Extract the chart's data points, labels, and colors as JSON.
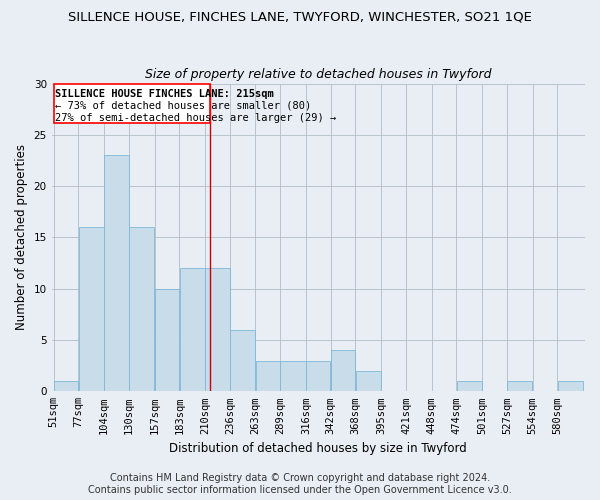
{
  "title": "SILLENCE HOUSE, FINCHES LANE, TWYFORD, WINCHESTER, SO21 1QE",
  "subtitle": "Size of property relative to detached houses in Twyford",
  "xlabel": "Distribution of detached houses by size in Twyford",
  "ylabel": "Number of detached properties",
  "categories": [
    "51sqm",
    "77sqm",
    "104sqm",
    "130sqm",
    "157sqm",
    "183sqm",
    "210sqm",
    "236sqm",
    "263sqm",
    "289sqm",
    "316sqm",
    "342sqm",
    "368sqm",
    "395sqm",
    "421sqm",
    "448sqm",
    "474sqm",
    "501sqm",
    "527sqm",
    "554sqm",
    "580sqm"
  ],
  "values": [
    1,
    16,
    23,
    16,
    10,
    12,
    12,
    6,
    3,
    3,
    3,
    4,
    2,
    0,
    0,
    0,
    1,
    0,
    1,
    0,
    1
  ],
  "bar_color": "#c9dcea",
  "bar_edge_color": "#7db8d8",
  "bin_edges": [
    51,
    77,
    104,
    130,
    157,
    183,
    210,
    236,
    263,
    289,
    316,
    342,
    368,
    395,
    421,
    448,
    474,
    501,
    527,
    554,
    580,
    607
  ],
  "annotation_text_line1": "SILLENCE HOUSE FINCHES LANE: 215sqm",
  "annotation_text_line2": "← 73% of detached houses are smaller (80)",
  "annotation_text_line3": "27% of semi-detached houses are larger (29) →",
  "red_line_color": "#cc0000",
  "footer_line1": "Contains HM Land Registry data © Crown copyright and database right 2024.",
  "footer_line2": "Contains public sector information licensed under the Open Government Licence v3.0.",
  "bg_color": "#e8eef4",
  "ylim": [
    0,
    30
  ],
  "yticks": [
    0,
    5,
    10,
    15,
    20,
    25,
    30
  ],
  "title_fontsize": 9.5,
  "subtitle_fontsize": 9,
  "axis_label_fontsize": 8.5,
  "tick_fontsize": 7.5,
  "footer_fontsize": 7,
  "annot_fontsize": 7.5
}
